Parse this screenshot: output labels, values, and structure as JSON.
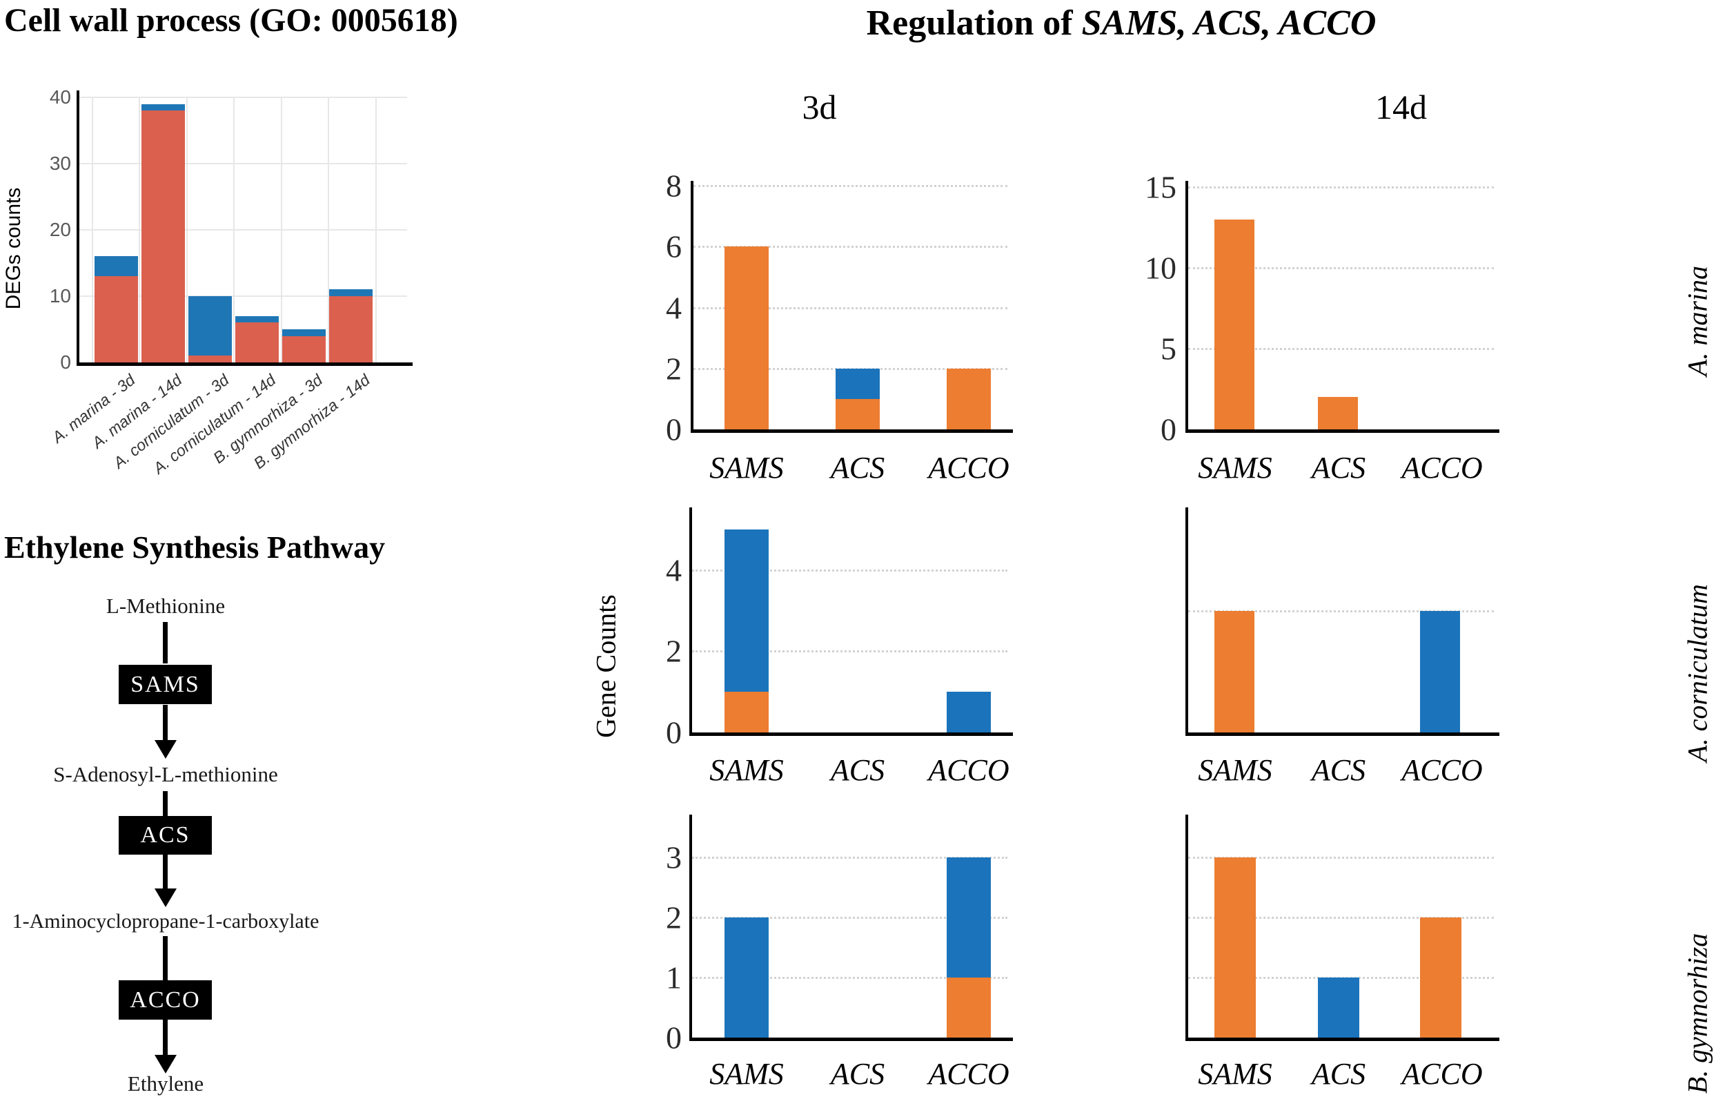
{
  "titles": {
    "left_top": "Cell wall process (GO: 0005618)",
    "pathway": "Ethylene Synthesis Pathway",
    "right_main_prefix": "Regulation of ",
    "right_main_genes": "SAMS, ACS, ACCO",
    "col_3d": "3d",
    "col_14d": "14d"
  },
  "axis_labels": {
    "degs_y": "DEGs counts",
    "gene_counts_y": "Gene Counts"
  },
  "row_labels": [
    "A. marina",
    "A. corniculatum",
    "B. gymnorhiza"
  ],
  "colors": {
    "degs_red": "#DB604E",
    "degs_blue": "#1F76B5",
    "orange": "#ED7D31",
    "blue": "#1B74BB"
  },
  "pathway": {
    "steps": [
      {
        "type": "metabolite",
        "label": "L-Methionine"
      },
      {
        "type": "enzyme",
        "label": "SAMS"
      },
      {
        "type": "metabolite",
        "label": "S-Adenosyl-L-methionine"
      },
      {
        "type": "enzyme",
        "label": "ACS"
      },
      {
        "type": "metabolite",
        "label": "1-Aminocyclopropane-1-carboxylate"
      },
      {
        "type": "enzyme",
        "label": "ACCO"
      },
      {
        "type": "metabolite",
        "label": "Ethylene"
      }
    ]
  },
  "chart_data": [
    {
      "id": "degs",
      "type": "bar",
      "stacked": true,
      "title": "Cell wall process (GO: 0005618)",
      "ylabel": "DEGs counts",
      "categories": [
        "A. marina - 3d",
        "A. marina - 14d",
        "A. corniculatum - 3d",
        "A. corniculatum - 14d",
        "B. gymnorhiza - 3d",
        "B. gymnorhiza - 14d"
      ],
      "series": [
        {
          "name": "red",
          "color": "#DB604E",
          "values": [
            13,
            38,
            1,
            6,
            4,
            10
          ]
        },
        {
          "name": "blue",
          "color": "#1F76B5",
          "values": [
            3,
            1,
            9,
            1,
            1,
            1
          ]
        }
      ],
      "yticks": [
        0,
        10,
        20,
        30,
        40
      ],
      "ylim": [
        0,
        41
      ],
      "grid": true,
      "legend": "none"
    },
    {
      "id": "c1",
      "type": "bar",
      "stacked": true,
      "panel": "A. marina / 3d",
      "categories": [
        "SAMS",
        "ACS",
        "ACCO"
      ],
      "series": [
        {
          "name": "orange",
          "color": "#ED7D31",
          "values": [
            6,
            1,
            2
          ]
        },
        {
          "name": "blue",
          "color": "#1B74BB",
          "values": [
            0,
            1,
            0
          ]
        }
      ],
      "yticks": [
        0,
        2,
        4,
        6,
        8
      ],
      "gridlines": [
        2,
        4,
        6,
        8
      ],
      "ylim": [
        0,
        8.2
      ],
      "legend": "none"
    },
    {
      "id": "c2",
      "type": "bar",
      "stacked": true,
      "panel": "A. marina / 14d",
      "categories": [
        "SAMS",
        "ACS",
        "ACCO"
      ],
      "series": [
        {
          "name": "orange",
          "color": "#ED7D31",
          "values": [
            13,
            2,
            0
          ]
        },
        {
          "name": "blue",
          "color": "#1B74BB",
          "values": [
            0,
            0,
            0
          ]
        }
      ],
      "yticks": [
        0,
        5,
        10,
        15
      ],
      "gridlines": [
        5,
        10,
        15
      ],
      "ylim": [
        0,
        15.4
      ],
      "legend": "none"
    },
    {
      "id": "c3",
      "type": "bar",
      "stacked": true,
      "panel": "A. corniculatum / 3d",
      "categories": [
        "SAMS",
        "ACS",
        "ACCO"
      ],
      "series": [
        {
          "name": "orange",
          "color": "#ED7D31",
          "values": [
            1,
            0,
            0
          ]
        },
        {
          "name": "blue",
          "color": "#1B74BB",
          "values": [
            4,
            0,
            1
          ]
        }
      ],
      "yticks": [
        0,
        2,
        4
      ],
      "gridlines": [
        2,
        4
      ],
      "ylim": [
        0,
        5.5
      ],
      "legend": "none"
    },
    {
      "id": "c4",
      "type": "bar",
      "stacked": true,
      "panel": "A. corniculatum / 14d",
      "categories": [
        "SAMS",
        "ACS",
        "ACCO"
      ],
      "series": [
        {
          "name": "orange",
          "color": "#ED7D31",
          "values": [
            3,
            0,
            0
          ]
        },
        {
          "name": "blue",
          "color": "#1B74BB",
          "values": [
            0,
            0,
            3
          ]
        }
      ],
      "yticks": [],
      "gridlines": [
        3
      ],
      "ylim": [
        0,
        5.5
      ],
      "legend": "none"
    },
    {
      "id": "c5",
      "type": "bar",
      "stacked": true,
      "panel": "B. gymnorhiza / 3d",
      "categories": [
        "SAMS",
        "ACS",
        "ACCO"
      ],
      "series": [
        {
          "name": "orange",
          "color": "#ED7D31",
          "values": [
            0,
            0,
            1
          ]
        },
        {
          "name": "blue",
          "color": "#1B74BB",
          "values": [
            2,
            0,
            2
          ]
        }
      ],
      "yticks": [
        0,
        1,
        2,
        3
      ],
      "gridlines": [
        1,
        2,
        3
      ],
      "ylim": [
        0,
        3.7
      ],
      "legend": "none"
    },
    {
      "id": "c6",
      "type": "bar",
      "stacked": true,
      "panel": "B. gymnorhiza / 14d",
      "categories": [
        "SAMS",
        "ACS",
        "ACCO"
      ],
      "series": [
        {
          "name": "orange",
          "color": "#ED7D31",
          "values": [
            3,
            0,
            2
          ]
        },
        {
          "name": "blue",
          "color": "#1B74BB",
          "values": [
            0,
            1,
            0
          ]
        }
      ],
      "yticks": [],
      "gridlines": [
        1,
        2,
        3
      ],
      "ylim": [
        0,
        3.7
      ],
      "legend": "none"
    }
  ]
}
